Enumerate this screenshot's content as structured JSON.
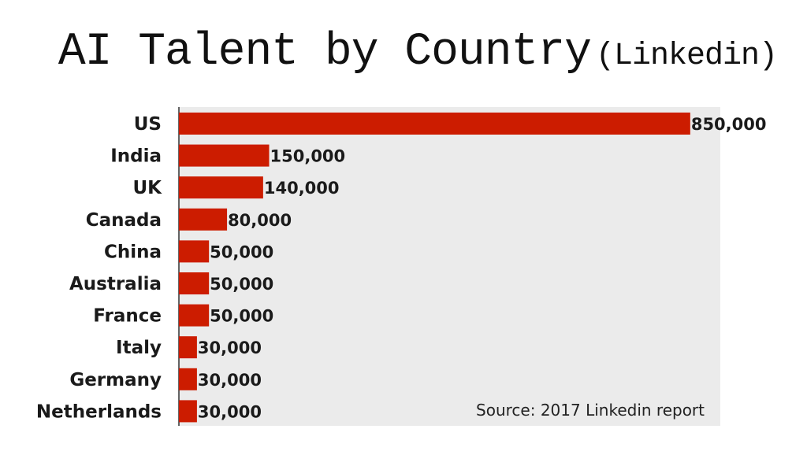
{
  "chart_data": {
    "type": "bar",
    "orientation": "horizontal",
    "title": "AI Talent by Country",
    "subtitle": "(Linkedin)",
    "categories": [
      "US",
      "India",
      "UK",
      "Canada",
      "China",
      "Australia",
      "France",
      "Italy",
      "Germany",
      "Netherlands"
    ],
    "values": [
      850000,
      150000,
      140000,
      80000,
      50000,
      50000,
      50000,
      30000,
      30000,
      30000
    ],
    "data_labels": [
      "850,000",
      "150,000",
      "140,000",
      "80,000",
      "50,000",
      "50,000",
      "50,000",
      "30,000",
      "30,000",
      "30,000"
    ],
    "xlim": [
      0,
      900000
    ],
    "grid": false,
    "legend": "none",
    "annotation": "Source: 2017 Linkedin report",
    "colors": {
      "bar": "#cc1c00",
      "plot_background": "#ebebeb",
      "axis": "#333333"
    }
  }
}
